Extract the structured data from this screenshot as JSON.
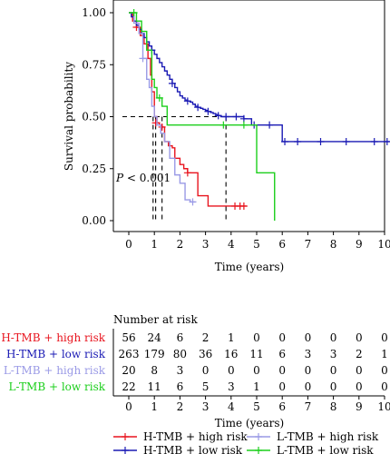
{
  "chart_data": [
    {
      "type": "line",
      "subtype": "kaplan-meier",
      "xlabel": "Time (years)",
      "ylabel": "Survival probability",
      "xlim": [
        0,
        10
      ],
      "ylim": [
        0,
        1
      ],
      "x_ticks": [
        "0",
        "1",
        "2",
        "3",
        "4",
        "5",
        "6",
        "7",
        "8",
        "9",
        "10"
      ],
      "y_ticks": [
        "0.00",
        "0.25",
        "0.50",
        "0.75",
        "1.00"
      ],
      "annotation": "P < 0.001",
      "median_line": 0.5,
      "legend_position": "bottom",
      "series": [
        {
          "name": "H-TMB + high risk",
          "color": "#e8141e",
          "x": [
            0,
            0.15,
            0.3,
            0.45,
            0.6,
            0.75,
            0.85,
            0.9,
            1.0,
            1.1,
            1.2,
            1.3,
            1.4,
            1.55,
            1.7,
            1.8,
            2.0,
            2.15,
            2.3,
            2.5,
            2.7,
            3.1,
            3.5,
            4.3,
            4.6
          ],
          "y": [
            1.0,
            0.96,
            0.93,
            0.89,
            0.85,
            0.78,
            0.7,
            0.62,
            0.5,
            0.47,
            0.46,
            0.45,
            0.38,
            0.36,
            0.35,
            0.3,
            0.27,
            0.25,
            0.23,
            0.23,
            0.12,
            0.07,
            0.07,
            0.07,
            0.07
          ],
          "censors": [
            [
              0.3,
              0.93
            ],
            [
              1.05,
              0.47
            ],
            [
              1.3,
              0.45
            ],
            [
              2.3,
              0.23
            ],
            [
              4.15,
              0.07
            ],
            [
              4.35,
              0.07
            ],
            [
              4.5,
              0.07
            ]
          ]
        },
        {
          "name": "H-TMB + low risk",
          "color": "#1a1ab4",
          "x": [
            0,
            0.1,
            0.2,
            0.3,
            0.4,
            0.5,
            0.6,
            0.7,
            0.8,
            0.9,
            1.0,
            1.1,
            1.2,
            1.3,
            1.4,
            1.5,
            1.6,
            1.7,
            1.8,
            1.9,
            2.0,
            2.1,
            2.2,
            2.3,
            2.4,
            2.5,
            2.6,
            2.7,
            2.8,
            2.9,
            3.0,
            3.1,
            3.2,
            3.3,
            3.4,
            3.5,
            3.6,
            3.8,
            4.0,
            4.2,
            4.5,
            4.8,
            5.3,
            6.0,
            6.2,
            10.2
          ],
          "y": [
            1.0,
            0.98,
            0.96,
            0.94,
            0.92,
            0.9,
            0.88,
            0.86,
            0.84,
            0.82,
            0.8,
            0.78,
            0.76,
            0.74,
            0.72,
            0.7,
            0.68,
            0.66,
            0.64,
            0.62,
            0.6,
            0.59,
            0.58,
            0.575,
            0.57,
            0.56,
            0.55,
            0.545,
            0.54,
            0.535,
            0.53,
            0.525,
            0.52,
            0.515,
            0.51,
            0.505,
            0.5,
            0.5,
            0.5,
            0.5,
            0.49,
            0.46,
            0.46,
            0.38,
            0.38,
            0.38
          ],
          "censors": [
            [
              0.9,
              0.82
            ],
            [
              1.7,
              0.66
            ],
            [
              2.3,
              0.575
            ],
            [
              2.7,
              0.545
            ],
            [
              3.1,
              0.525
            ],
            [
              3.5,
              0.505
            ],
            [
              3.8,
              0.5
            ],
            [
              4.2,
              0.5
            ],
            [
              4.5,
              0.49
            ],
            [
              4.9,
              0.46
            ],
            [
              5.5,
              0.46
            ],
            [
              6.1,
              0.38
            ],
            [
              6.6,
              0.38
            ],
            [
              7.5,
              0.38
            ],
            [
              8.5,
              0.38
            ],
            [
              9.6,
              0.38
            ],
            [
              10.1,
              0.38
            ]
          ]
        },
        {
          "name": "L-TMB + high risk",
          "color": "#9a9ae6",
          "x": [
            0,
            0.2,
            0.4,
            0.55,
            0.7,
            0.8,
            0.9,
            1.0,
            1.1,
            1.25,
            1.4,
            1.6,
            1.8,
            2.0,
            2.2,
            2.4,
            2.6
          ],
          "y": [
            1.0,
            0.95,
            0.9,
            0.78,
            0.68,
            0.64,
            0.55,
            0.5,
            0.46,
            0.42,
            0.38,
            0.3,
            0.22,
            0.18,
            0.1,
            0.09,
            0.09
          ],
          "censors": [
            [
              0.55,
              0.78
            ],
            [
              2.5,
              0.09
            ]
          ]
        },
        {
          "name": "L-TMB + low risk",
          "color": "#1ccf1c",
          "x": [
            0,
            0.3,
            0.5,
            0.7,
            0.9,
            1.0,
            1.1,
            1.3,
            1.5,
            4.8,
            5.0,
            5.7
          ],
          "y": [
            1.0,
            0.96,
            0.91,
            0.82,
            0.68,
            0.64,
            0.59,
            0.55,
            0.46,
            0.46,
            0.23,
            0.0
          ],
          "censors": [
            [
              0.2,
              1.0
            ],
            [
              1.2,
              0.59
            ],
            [
              3.7,
              0.46
            ],
            [
              4.5,
              0.46
            ]
          ]
        }
      ]
    },
    {
      "type": "table",
      "title": "Number at risk",
      "xlabel": "Time (years)",
      "x_ticks": [
        "0",
        "1",
        "2",
        "3",
        "4",
        "5",
        "6",
        "7",
        "8",
        "9",
        "10"
      ],
      "rows": [
        {
          "label": "H-TMB + high risk",
          "color": "#e8141e",
          "values": [
            "56",
            "24",
            "6",
            "2",
            "1",
            "0",
            "0",
            "0",
            "0",
            "0",
            "0"
          ]
        },
        {
          "label": "H-TMB + low risk",
          "color": "#1a1ab4",
          "values": [
            "263",
            "179",
            "80",
            "36",
            "16",
            "11",
            "6",
            "3",
            "3",
            "2",
            "1"
          ]
        },
        {
          "label": "L-TMB + high risk",
          "color": "#9a9ae6",
          "values": [
            "20",
            "8",
            "3",
            "0",
            "0",
            "0",
            "0",
            "0",
            "0",
            "0",
            "0"
          ]
        },
        {
          "label": "L-TMB + low risk",
          "color": "#1ccf1c",
          "values": [
            "22",
            "11",
            "6",
            "5",
            "3",
            "1",
            "0",
            "0",
            "0",
            "0",
            "0"
          ]
        }
      ]
    }
  ]
}
